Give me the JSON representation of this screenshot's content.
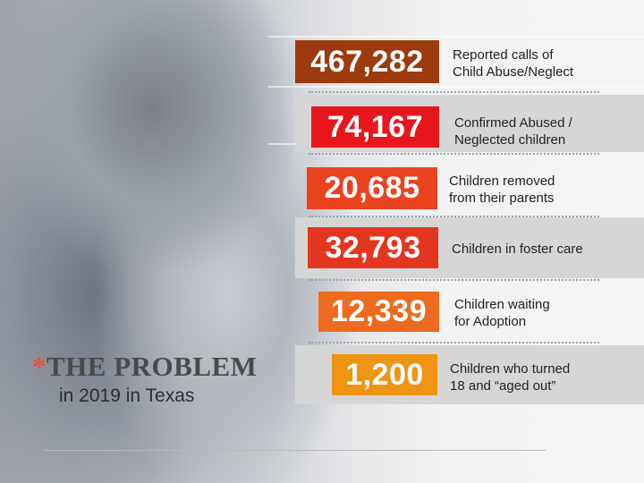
{
  "title": {
    "star": "*",
    "text": "THE PROBLEM",
    "subtitle": "in 2019 in Texas"
  },
  "stats": [
    {
      "value": "467,282",
      "label": "Reported calls of\nChild Abuse/Neglect",
      "color": "#9c3b0d"
    },
    {
      "value": "74,167",
      "label": "Confirmed Abused /\nNeglected children",
      "color": "#e8161c"
    },
    {
      "value": "20,685",
      "label": "Children removed\nfrom their parents",
      "color": "#ea4320"
    },
    {
      "value": "32,793",
      "label": "Children in foster care",
      "color": "#e4351f"
    },
    {
      "value": "12,339",
      "label": "Children waiting\nfor Adoption",
      "color": "#ed6a1f"
    },
    {
      "value": "1,200",
      "label": "Children who turned\n18 and “aged out”",
      "color": "#f09414"
    }
  ]
}
